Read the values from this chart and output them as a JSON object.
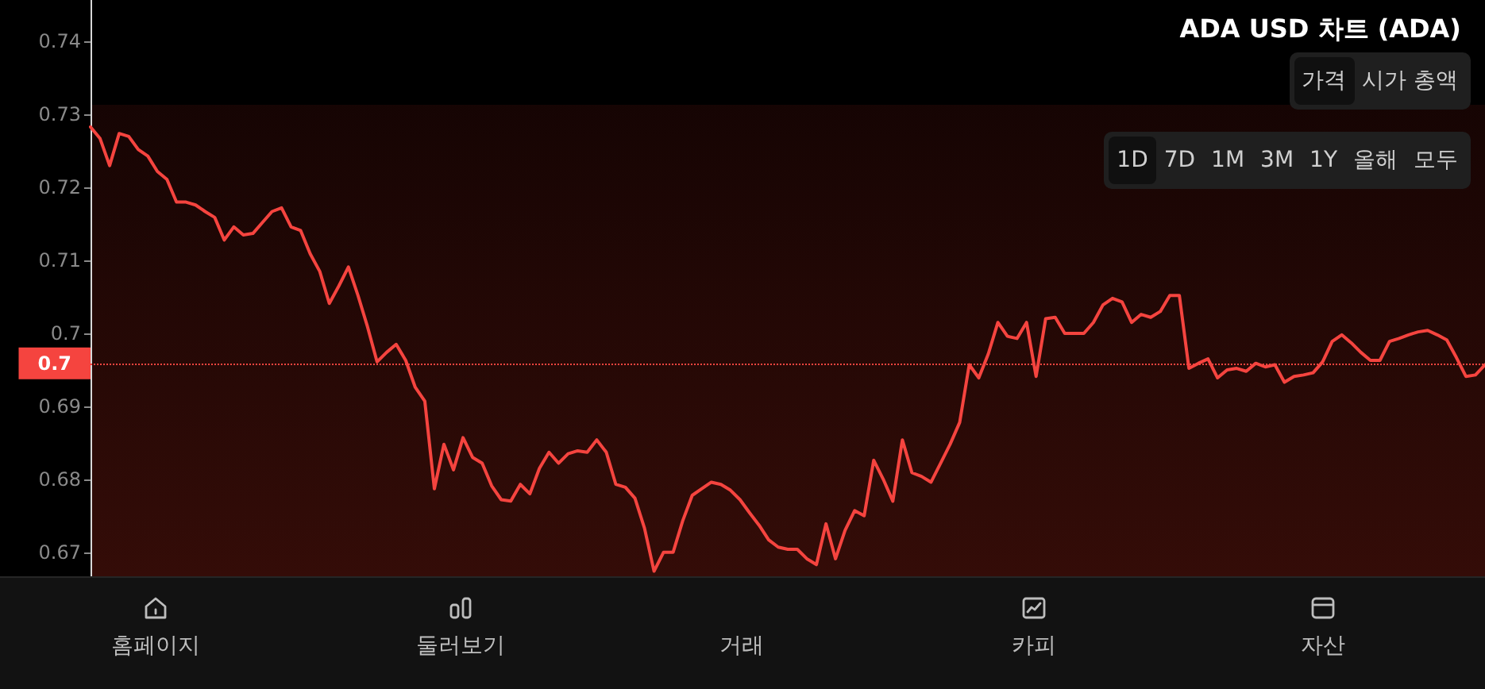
{
  "chart_data": {
    "type": "line",
    "title": "ADA USD 차트 (ADA)",
    "categories": [
      null,
      null,
      null,
      null,
      null,
      null,
      null,
      null,
      null,
      null,
      null,
      null,
      null,
      null,
      null,
      null,
      null,
      null,
      null,
      null,
      null,
      null,
      null,
      null,
      null,
      null,
      null,
      null,
      null,
      null,
      null,
      null,
      null,
      null,
      null,
      null,
      null,
      null,
      null,
      null,
      null,
      null,
      null,
      null,
      null,
      null,
      null,
      null,
      null,
      null,
      null,
      null,
      null,
      null,
      null,
      null,
      null,
      null,
      null,
      null,
      null,
      null,
      null,
      null,
      null,
      null,
      null,
      null,
      null,
      null,
      null,
      null,
      null,
      null,
      null,
      null,
      null,
      null,
      null,
      null,
      null,
      null,
      null,
      null,
      null,
      null,
      null,
      null,
      null,
      null,
      null,
      null,
      null,
      null,
      null,
      null,
      null,
      null,
      null,
      null,
      null,
      null,
      null,
      null,
      null,
      null,
      null,
      null,
      null,
      null,
      null,
      null,
      null,
      null,
      null,
      null,
      null,
      null,
      null,
      null,
      null,
      null,
      null,
      null,
      null,
      null,
      null,
      null,
      null,
      null,
      null,
      null,
      null,
      null,
      null,
      null,
      null,
      null,
      null,
      null,
      null,
      null,
      null,
      null,
      null,
      null,
      null
    ],
    "values": [
      0.7283,
      0.7267,
      0.723,
      0.7274,
      0.727,
      0.7252,
      0.7243,
      0.7222,
      0.7211,
      0.718,
      0.718,
      0.7176,
      0.7167,
      0.7159,
      0.7128,
      0.7146,
      0.7135,
      0.7137,
      0.7152,
      0.7167,
      0.7172,
      0.7146,
      0.7141,
      0.7109,
      0.7085,
      0.7041,
      0.7065,
      0.7091,
      0.7052,
      0.7009,
      0.6961,
      0.6974,
      0.6985,
      0.6963,
      0.6926,
      0.6907,
      0.6787,
      0.6848,
      0.6813,
      0.6857,
      0.683,
      0.6822,
      0.6791,
      0.6772,
      0.677,
      0.6793,
      0.678,
      0.6815,
      0.6837,
      0.6822,
      0.6835,
      0.6839,
      0.6837,
      0.6854,
      0.6837,
      0.6793,
      0.6789,
      0.6774,
      0.6733,
      0.6674,
      0.67,
      0.67,
      0.6743,
      0.6778,
      0.6787,
      0.6796,
      0.6793,
      0.6785,
      0.6772,
      0.6754,
      0.6737,
      0.6717,
      0.6707,
      0.6704,
      0.6704,
      0.6691,
      0.6683,
      0.6739,
      0.6691,
      0.673,
      0.6757,
      0.675,
      0.6826,
      0.68,
      0.677,
      0.6854,
      0.6809,
      0.6804,
      0.6796,
      0.6822,
      0.6848,
      0.6878,
      0.6957,
      0.6939,
      0.6972,
      0.7015,
      0.6996,
      0.6993,
      0.7015,
      0.6941,
      0.702,
      0.7022,
      0.7,
      0.7,
      0.7,
      0.7015,
      0.7039,
      0.7048,
      0.7043,
      0.7015,
      0.7026,
      0.7022,
      0.703,
      0.7052,
      0.7052,
      0.6952,
      0.6959,
      0.6965,
      0.6939,
      0.695,
      0.6952,
      0.6948,
      0.6959,
      0.6954,
      0.6957,
      0.6933,
      0.6941,
      0.6943,
      0.6946,
      0.6961,
      0.6989,
      0.6998,
      0.6987,
      0.6974,
      0.6963,
      0.6963,
      0.6989,
      0.6993,
      0.6998,
      0.7002,
      0.7004,
      0.6998,
      0.6991,
      0.6967,
      0.6941,
      0.6943,
      0.6957
    ],
    "color": "#f5443f",
    "ylim": [
      0.6667,
      0.7457
    ],
    "yticks": [
      0.67,
      0.68,
      0.69,
      0.7,
      0.71,
      0.72,
      0.73,
      0.74
    ],
    "tick_labels": "y",
    "grid": false,
    "ref_lines": [
      {
        "axis": "y",
        "value": 0.6959,
        "label": "0.7",
        "color": "#f5443f",
        "line_style": "dotted"
      }
    ],
    "annotations": [
      "가격",
      "시가 총액",
      "1D",
      "7D",
      "1M",
      "3M",
      "1Y",
      "올해",
      "모두",
      "홈페이지",
      "둘러보기",
      "거래",
      "카피",
      "자산"
    ]
  }
}
